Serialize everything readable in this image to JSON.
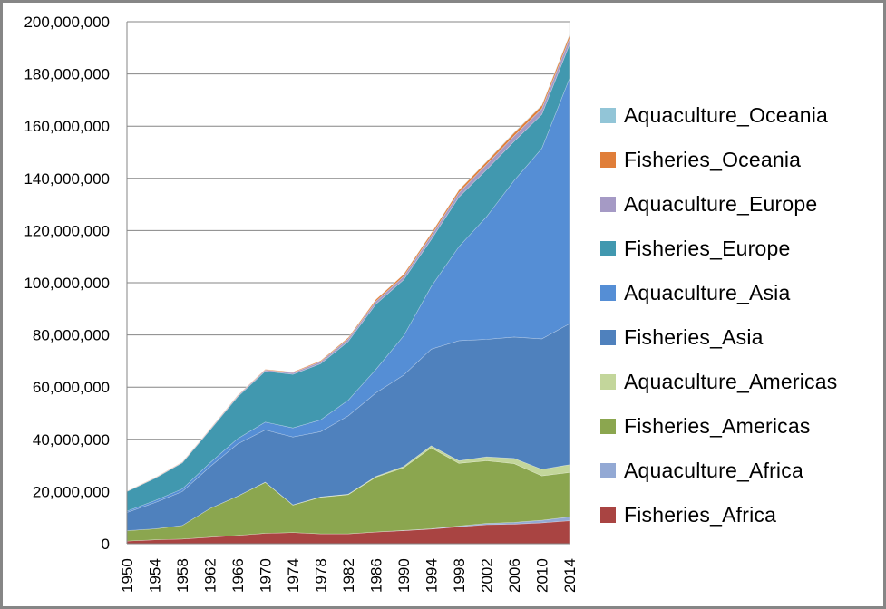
{
  "chart_data": {
    "type": "area",
    "stacked": true,
    "title": "",
    "xlabel": "",
    "ylabel": "",
    "ylim": [
      0,
      200000000
    ],
    "yticks": [
      0,
      20000000,
      40000000,
      60000000,
      80000000,
      100000000,
      120000000,
      140000000,
      160000000,
      180000000,
      200000000
    ],
    "ytick_labels": [
      "0",
      "20,000,000",
      "40,000,000",
      "60,000,000",
      "80,000,000",
      "100,000,000",
      "120,000,000",
      "140,000,000",
      "160,000,000",
      "180,000,000",
      "200,000,000"
    ],
    "xlim": [
      1950,
      2014
    ],
    "xtick_labels": [
      "1950",
      "1954",
      "1958",
      "1962",
      "1966",
      "1970",
      "1974",
      "1978",
      "1982",
      "1986",
      "1990",
      "1994",
      "1998",
      "2002",
      "2006",
      "2010",
      "2014"
    ],
    "x": [
      1950,
      1954,
      1958,
      1962,
      1966,
      1970,
      1974,
      1978,
      1982,
      1986,
      1990,
      1994,
      1998,
      2002,
      2006,
      2010,
      2014
    ],
    "grid": "horizontal",
    "legend_position": "right",
    "series": [
      {
        "name": "Fisheries_Africa",
        "color": "#A94442",
        "values": [
          1000000,
          1500000,
          1800000,
          2500000,
          3200000,
          4000000,
          4300000,
          3800000,
          3800000,
          4500000,
          5000000,
          5600000,
          6500000,
          7300000,
          7500000,
          8000000,
          8800000
        ]
      },
      {
        "name": "Aquaculture_Africa",
        "color": "#93A9D4",
        "values": [
          0,
          0,
          0,
          0,
          0,
          0,
          0,
          0,
          0,
          0,
          100000,
          150000,
          300000,
          500000,
          700000,
          1000000,
          1500000
        ]
      },
      {
        "name": "Fisheries_Americas",
        "color": "#8BA64F",
        "values": [
          4000000,
          4200000,
          5200000,
          11000000,
          15000000,
          19500000,
          10500000,
          14000000,
          15000000,
          21000000,
          24000000,
          31000000,
          24000000,
          24000000,
          22500000,
          17000000,
          17000000
        ]
      },
      {
        "name": "Aquaculture_Americas",
        "color": "#C3D69B",
        "values": [
          0,
          0,
          0,
          0,
          50000,
          100000,
          100000,
          150000,
          200000,
          300000,
          500000,
          800000,
          1000000,
          1500000,
          2000000,
          2500000,
          3000000
        ]
      },
      {
        "name": "Fisheries_Asia",
        "color": "#4F81BD",
        "values": [
          7000000,
          10000000,
          13000000,
          16000000,
          20000000,
          20000000,
          26000000,
          25000000,
          30000000,
          32000000,
          35000000,
          37000000,
          46000000,
          45000000,
          46500000,
          50000000,
          54000000
        ]
      },
      {
        "name": "Aquaculture_Asia",
        "color": "#558ED5",
        "values": [
          500000,
          800000,
          1000000,
          1500000,
          2000000,
          3000000,
          3500000,
          4500000,
          6000000,
          9000000,
          15000000,
          24000000,
          36000000,
          47000000,
          60000000,
          73000000,
          94000000
        ]
      },
      {
        "name": "Fisheries_Europe",
        "color": "#4198AF",
        "values": [
          7500000,
          8500000,
          10000000,
          12500000,
          16000000,
          19500000,
          20500000,
          21500000,
          22500000,
          25000000,
          21500000,
          18000000,
          19000000,
          18000000,
          15000000,
          13000000,
          13000000
        ]
      },
      {
        "name": "Aquaculture_Europe",
        "color": "#A59AC5",
        "values": [
          100000,
          150000,
          200000,
          300000,
          400000,
          500000,
          600000,
          800000,
          1000000,
          1100000,
          1300000,
          1500000,
          1700000,
          2000000,
          2100000,
          2200000,
          2300000
        ]
      },
      {
        "name": "Fisheries_Oceania",
        "color": "#E07E39",
        "values": [
          100000,
          100000,
          150000,
          150000,
          200000,
          250000,
          300000,
          400000,
          500000,
          700000,
          800000,
          900000,
          1000000,
          1100000,
          1200000,
          1250000,
          1300000
        ]
      },
      {
        "name": "Aquaculture_Oceania",
        "color": "#92C5D7",
        "values": [
          0,
          0,
          0,
          0,
          0,
          0,
          0,
          10000,
          20000,
          30000,
          50000,
          80000,
          100000,
          150000,
          170000,
          180000,
          200000
        ]
      }
    ]
  }
}
